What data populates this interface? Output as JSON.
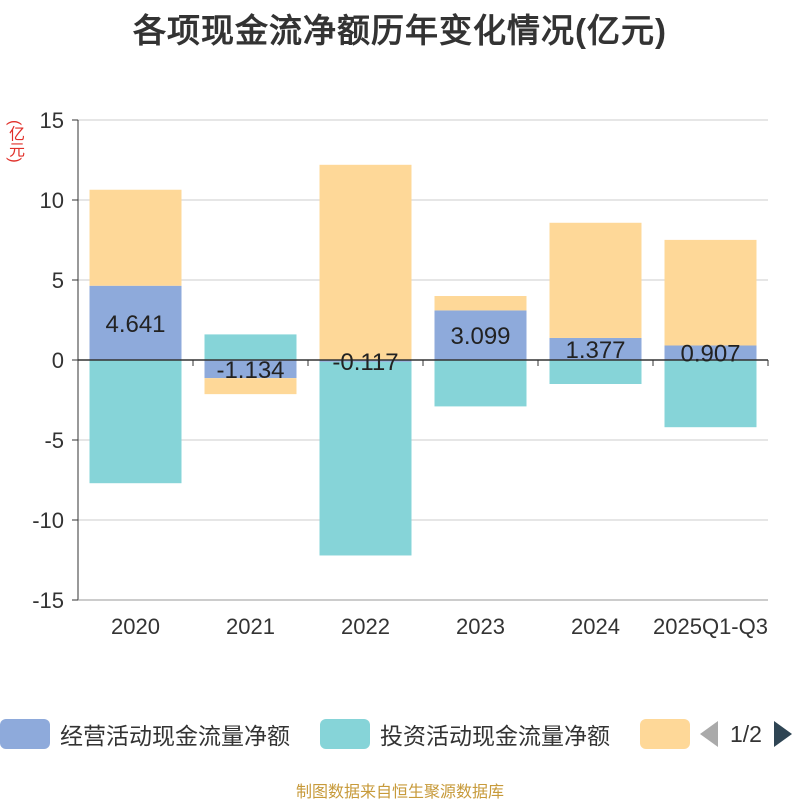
{
  "chart_data": {
    "type": "bar",
    "title": "各项现金流净额历年变化情况(亿元)",
    "ylabel": "(亿元)",
    "ylim": [
      -15,
      15
    ],
    "yticks": [
      15,
      10,
      5,
      0,
      -5,
      -10,
      -15
    ],
    "categories": [
      "2020",
      "2021",
      "2022",
      "2023",
      "2024",
      "2025Q1-Q3"
    ],
    "series": [
      {
        "name": "经营活动现金流量净额",
        "color": "#8eaadb",
        "values": [
          4.641,
          -1.134,
          -0.117,
          3.099,
          1.377,
          0.907
        ],
        "labels": [
          "4.641",
          "-1.134",
          "-0.117",
          "3.099",
          "1.377",
          "0.907"
        ]
      },
      {
        "name": "投资活动现金流量净额",
        "color": "#86d4d8",
        "values": [
          -7.7,
          1.6,
          -12.1,
          -2.9,
          -1.5,
          -4.2
        ]
      },
      {
        "name": "",
        "color": "#fed898",
        "values": [
          6.0,
          -1.0,
          12.2,
          0.9,
          7.2,
          6.6
        ]
      }
    ]
  },
  "legend": {
    "page": "1/2"
  },
  "footer": {
    "source": "制图数据来自恒生聚源数据库"
  }
}
